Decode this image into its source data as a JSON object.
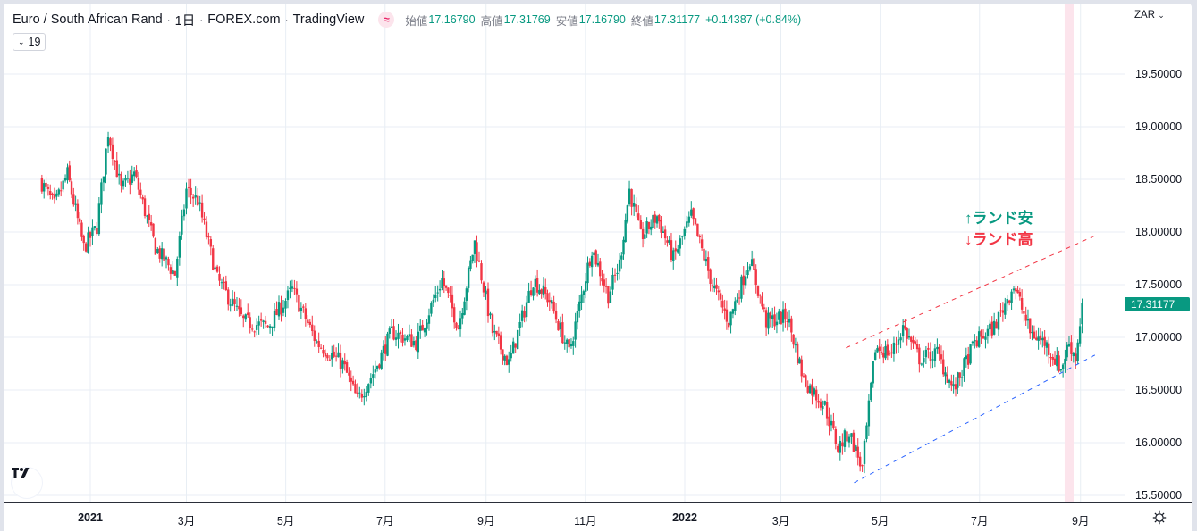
{
  "header": {
    "symbol_name": "Euro / South African Rand",
    "interval": "1日",
    "exchange": "FOREX.com",
    "source": "TradingView",
    "session_icon": "≈",
    "ohlc": {
      "open_label": "始値",
      "open": "17.16790",
      "high_label": "高値",
      "high": "17.31769",
      "low_label": "安値",
      "low": "17.16790",
      "close_label": "終値",
      "close": "17.31177",
      "change": "+0.14387 (+0.84%)"
    },
    "indicator_toggle": {
      "chevron": "⌄",
      "count": "19"
    }
  },
  "price_axis": {
    "currency": "ZAR",
    "currency_chevron": "⌄",
    "ticks": [
      "19.50000",
      "19.00000",
      "18.50000",
      "18.00000",
      "17.50000",
      "17.00000",
      "16.50000",
      "16.00000",
      "15.50000"
    ],
    "last_price": "17.31177"
  },
  "time_axis": {
    "labels": [
      {
        "text": "2021",
        "year": true
      },
      {
        "text": "3月",
        "year": false
      },
      {
        "text": "5月",
        "year": false
      },
      {
        "text": "7月",
        "year": false
      },
      {
        "text": "9月",
        "year": false
      },
      {
        "text": "11月",
        "year": false
      },
      {
        "text": "2022",
        "year": true
      },
      {
        "text": "3月",
        "year": false
      },
      {
        "text": "5月",
        "year": false
      },
      {
        "text": "7月",
        "year": false
      },
      {
        "text": "9月",
        "year": false
      }
    ]
  },
  "annotations": {
    "up_label": "↑ランド安",
    "down_label": "↓ランド高",
    "up_color": "#089981",
    "down_color": "#f23645"
  },
  "colors": {
    "up": "#089981",
    "down": "#f23645",
    "grid": "#e8eef4",
    "upper_trendline": "#f23645",
    "lower_trendline": "#2962ff",
    "highlight_band": "#fce4ec"
  },
  "chart_data": {
    "type": "candlestick",
    "title": "Euro / South African Rand · 1日 · FOREX.com",
    "xlabel": "",
    "ylabel": "ZAR",
    "ylim": [
      15.45,
      19.85
    ],
    "x_ticks": [
      "2021",
      "3月",
      "5月",
      "7月",
      "9月",
      "11月",
      "2022",
      "3月",
      "5月",
      "7月",
      "9月"
    ],
    "y_ticks": [
      15.5,
      16.0,
      16.5,
      17.0,
      17.5,
      18.0,
      18.5,
      19.0,
      19.5
    ],
    "last_close": 17.31177,
    "price_path_approx": [
      {
        "date": "2020-12-01",
        "close": 18.5
      },
      {
        "date": "2020-12-10",
        "close": 18.25
      },
      {
        "date": "2020-12-18",
        "close": 18.55
      },
      {
        "date": "2020-12-28",
        "close": 17.85
      },
      {
        "date": "2021-01-05",
        "close": 18.05
      },
      {
        "date": "2021-01-12",
        "close": 18.95
      },
      {
        "date": "2021-01-20",
        "close": 18.4
      },
      {
        "date": "2021-01-28",
        "close": 18.55
      },
      {
        "date": "2021-02-10",
        "close": 17.85
      },
      {
        "date": "2021-02-22",
        "close": 17.6
      },
      {
        "date": "2021-03-01",
        "close": 18.4
      },
      {
        "date": "2021-03-08",
        "close": 18.3
      },
      {
        "date": "2021-03-20",
        "close": 17.55
      },
      {
        "date": "2021-04-05",
        "close": 17.15
      },
      {
        "date": "2021-04-20",
        "close": 17.1
      },
      {
        "date": "2021-05-05",
        "close": 17.45
      },
      {
        "date": "2021-05-20",
        "close": 16.95
      },
      {
        "date": "2021-06-05",
        "close": 16.75
      },
      {
        "date": "2021-06-14",
        "close": 16.4
      },
      {
        "date": "2021-06-25",
        "close": 16.7
      },
      {
        "date": "2021-07-05",
        "close": 17.05
      },
      {
        "date": "2021-07-20",
        "close": 16.95
      },
      {
        "date": "2021-08-05",
        "close": 17.55
      },
      {
        "date": "2021-08-15",
        "close": 17.1
      },
      {
        "date": "2021-08-25",
        "close": 17.9
      },
      {
        "date": "2021-09-05",
        "close": 17.05
      },
      {
        "date": "2021-09-15",
        "close": 16.75
      },
      {
        "date": "2021-09-30",
        "close": 17.55
      },
      {
        "date": "2021-10-10",
        "close": 17.35
      },
      {
        "date": "2021-10-22",
        "close": 16.85
      },
      {
        "date": "2021-11-05",
        "close": 17.85
      },
      {
        "date": "2021-11-15",
        "close": 17.4
      },
      {
        "date": "2021-11-22",
        "close": 17.7
      },
      {
        "date": "2021-11-28",
        "close": 18.4
      },
      {
        "date": "2021-12-05",
        "close": 17.95
      },
      {
        "date": "2021-12-15",
        "close": 18.15
      },
      {
        "date": "2021-12-25",
        "close": 17.75
      },
      {
        "date": "2022-01-05",
        "close": 18.15
      },
      {
        "date": "2022-01-18",
        "close": 17.5
      },
      {
        "date": "2022-01-28",
        "close": 17.15
      },
      {
        "date": "2022-02-10",
        "close": 17.75
      },
      {
        "date": "2022-02-20",
        "close": 17.15
      },
      {
        "date": "2022-03-05",
        "close": 17.2
      },
      {
        "date": "2022-03-15",
        "close": 16.6
      },
      {
        "date": "2022-03-28",
        "close": 16.35
      },
      {
        "date": "2022-04-05",
        "close": 15.95
      },
      {
        "date": "2022-04-12",
        "close": 16.1
      },
      {
        "date": "2022-04-20",
        "close": 15.75
      },
      {
        "date": "2022-04-28",
        "close": 16.9
      },
      {
        "date": "2022-05-08",
        "close": 16.85
      },
      {
        "date": "2022-05-15",
        "close": 17.1
      },
      {
        "date": "2022-05-25",
        "close": 16.8
      },
      {
        "date": "2022-06-05",
        "close": 16.85
      },
      {
        "date": "2022-06-15",
        "close": 16.5
      },
      {
        "date": "2022-06-28",
        "close": 16.95
      },
      {
        "date": "2022-07-10",
        "close": 17.1
      },
      {
        "date": "2022-07-22",
        "close": 17.5
      },
      {
        "date": "2022-08-01",
        "close": 17.05
      },
      {
        "date": "2022-08-10",
        "close": 16.95
      },
      {
        "date": "2022-08-20",
        "close": 16.7
      },
      {
        "date": "2022-08-25",
        "close": 16.95
      },
      {
        "date": "2022-08-29",
        "close": 16.8
      },
      {
        "date": "2022-09-02",
        "close": 17.31
      }
    ],
    "trendlines": [
      {
        "name": "upper_resistance",
        "style": "dashed",
        "color": "#f23645",
        "from": {
          "date": "2022-04-10",
          "price": 16.9
        },
        "to": {
          "date": "2022-09-12",
          "price": 17.98
        }
      },
      {
        "name": "lower_support",
        "style": "dashed",
        "color": "#2962ff",
        "from": {
          "date": "2022-04-15",
          "price": 15.62
        },
        "to": {
          "date": "2022-09-12",
          "price": 16.85
        }
      }
    ],
    "highlight_band": {
      "date_approx": "2022-08-25",
      "color": "#fce4ec"
    }
  }
}
